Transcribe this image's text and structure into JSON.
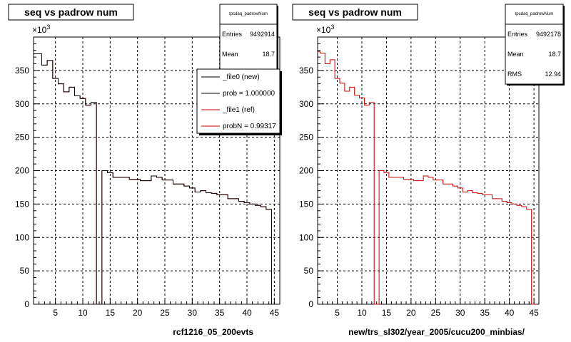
{
  "chart_data": [
    {
      "type": "line",
      "title": "seq vs padrow num",
      "xlabel": "rcf1216_05_200evts",
      "ylabel": "",
      "y_multiplier": "×10^3",
      "xlim": [
        1,
        46
      ],
      "ylim": [
        0,
        400
      ],
      "x_ticks": [
        5,
        10,
        15,
        20,
        25,
        30,
        35,
        40,
        45
      ],
      "y_ticks": [
        0,
        50,
        100,
        150,
        200,
        250,
        300,
        350
      ],
      "grid": true,
      "stats": {
        "name": "tpcdaq_padrowNum",
        "entries_label": "Entries",
        "entries": "9492914",
        "mean_label": "Mean",
        "mean": "18.7"
      },
      "legend": [
        "_file0 (new)",
        "prob = 1.000000",
        "_file1 (ref)",
        "probN = 0.99317"
      ],
      "series": [
        {
          "name": "_file1 (ref)",
          "color": "#cc0000",
          "x": [
            1,
            2,
            3,
            4,
            5,
            6,
            7,
            8,
            9,
            10,
            11,
            12,
            13,
            14,
            15,
            16,
            17,
            18,
            19,
            20,
            21,
            22,
            23,
            24,
            25,
            26,
            27,
            28,
            29,
            30,
            31,
            32,
            33,
            34,
            35,
            36,
            37,
            38,
            39,
            40,
            41,
            42,
            43,
            44,
            45
          ],
          "values": [
            375,
            375,
            358,
            365,
            338,
            330,
            318,
            325,
            312,
            308,
            298,
            302,
            0,
            200,
            197,
            190,
            190,
            190,
            187,
            187,
            185,
            185,
            192,
            190,
            186,
            186,
            180,
            180,
            177,
            174,
            168,
            170,
            167,
            166,
            164,
            164,
            158,
            158,
            154,
            152,
            150,
            148,
            146,
            142,
            0
          ]
        },
        {
          "name": "_file0 (new)",
          "color": "#000000",
          "x": [
            1,
            2,
            3,
            4,
            5,
            6,
            7,
            8,
            9,
            10,
            11,
            12,
            13,
            14,
            15,
            16,
            17,
            18,
            19,
            20,
            21,
            22,
            23,
            24,
            25,
            26,
            27,
            28,
            29,
            30,
            31,
            32,
            33,
            34,
            35,
            36,
            37,
            38,
            39,
            40,
            41,
            42,
            43,
            44,
            45
          ],
          "values": [
            375,
            375,
            358,
            365,
            338,
            330,
            318,
            325,
            312,
            308,
            298,
            302,
            0,
            200,
            197,
            190,
            190,
            190,
            187,
            187,
            185,
            185,
            192,
            190,
            186,
            186,
            180,
            180,
            177,
            174,
            168,
            170,
            167,
            166,
            164,
            164,
            158,
            158,
            154,
            152,
            150,
            148,
            146,
            142,
            0
          ]
        }
      ]
    },
    {
      "type": "line",
      "title": "seq vs padrow num",
      "xlabel": "new/trs_sl302/year_2005/cucu200_minbias/",
      "ylabel": "",
      "y_multiplier": "×10^3",
      "xlim": [
        1,
        46
      ],
      "ylim": [
        0,
        400
      ],
      "x_ticks": [
        5,
        10,
        15,
        20,
        25,
        30,
        35,
        40,
        45
      ],
      "y_ticks": [
        0,
        50,
        100,
        150,
        200,
        250,
        300,
        350
      ],
      "grid": true,
      "stats": {
        "name": "tpcdaq_padrowNum",
        "entries_label": "Entries",
        "entries": "9492178",
        "mean_label": "Mean",
        "mean": "18.7",
        "rms_label": "RMS",
        "rms": "12.94"
      },
      "series": [
        {
          "name": "",
          "color": "#cc0000",
          "x": [
            1,
            2,
            3,
            4,
            5,
            6,
            7,
            8,
            9,
            10,
            11,
            12,
            13,
            14,
            15,
            16,
            17,
            18,
            19,
            20,
            21,
            22,
            23,
            24,
            25,
            26,
            27,
            28,
            29,
            30,
            31,
            32,
            33,
            34,
            35,
            36,
            37,
            38,
            39,
            40,
            41,
            42,
            43,
            44,
            45
          ],
          "values": [
            378,
            376,
            360,
            366,
            338,
            331,
            319,
            325,
            313,
            309,
            298,
            302,
            0,
            200,
            197,
            190,
            190,
            190,
            187,
            187,
            185,
            185,
            192,
            190,
            186,
            186,
            180,
            180,
            177,
            174,
            168,
            170,
            167,
            166,
            164,
            164,
            158,
            158,
            154,
            152,
            150,
            148,
            146,
            142,
            0
          ]
        }
      ]
    }
  ]
}
